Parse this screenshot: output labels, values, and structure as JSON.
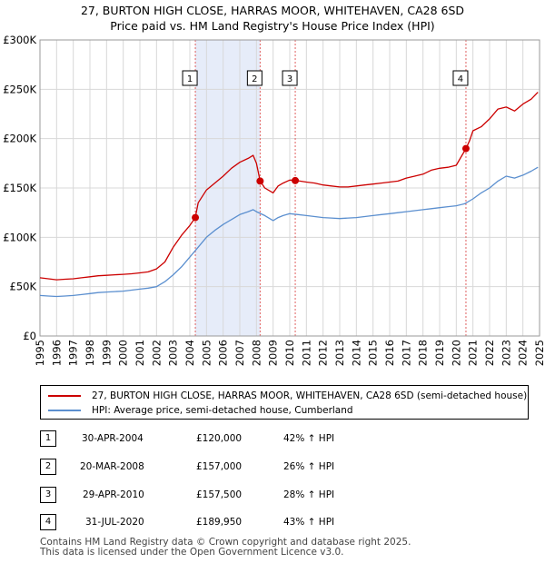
{
  "header": {
    "title": "27, BURTON HIGH CLOSE, HARRAS MOOR, WHITEHAVEN, CA28 6SD",
    "subtitle": "Price paid vs. HM Land Registry's House Price Index (HPI)"
  },
  "chart_data": {
    "type": "line",
    "xlim": [
      1995,
      2025
    ],
    "ylim": [
      0,
      300000
    ],
    "yticks": [
      0,
      50000,
      100000,
      150000,
      200000,
      250000,
      300000
    ],
    "ytick_labels": [
      "£0",
      "£50K",
      "£100K",
      "£150K",
      "£200K",
      "£250K",
      "£300K"
    ],
    "xticks": [
      1995,
      1996,
      1997,
      1998,
      1999,
      2000,
      2001,
      2002,
      2003,
      2004,
      2005,
      2006,
      2007,
      2008,
      2009,
      2010,
      2011,
      2012,
      2013,
      2014,
      2015,
      2016,
      2017,
      2018,
      2019,
      2020,
      2021,
      2022,
      2023,
      2024,
      2025
    ],
    "grid": true,
    "series": [
      {
        "name": "27, BURTON HIGH CLOSE, HARRAS MOOR, WHITEHAVEN, CA28 6SD (semi-detached house)",
        "color": "#cc0000",
        "x": [
          1995.0,
          1995.5,
          1996.0,
          1996.5,
          1997.0,
          1997.5,
          1998.0,
          1998.5,
          1999.0,
          1999.5,
          2000.0,
          2000.5,
          2001.0,
          2001.5,
          2002.0,
          2002.5,
          2003.0,
          2003.5,
          2004.0,
          2004.33,
          2004.5,
          2005.0,
          2005.5,
          2006.0,
          2006.5,
          2007.0,
          2007.5,
          2007.8,
          2008.0,
          2008.22,
          2008.5,
          2009.0,
          2009.3,
          2009.6,
          2010.0,
          2010.33,
          2010.6,
          2011.0,
          2011.5,
          2012.0,
          2012.5,
          2013.0,
          2013.5,
          2014.0,
          2014.5,
          2015.0,
          2015.5,
          2016.0,
          2016.5,
          2017.0,
          2017.5,
          2018.0,
          2018.5,
          2019.0,
          2019.5,
          2020.0,
          2020.58,
          2020.8,
          2021.0,
          2021.5,
          2022.0,
          2022.5,
          2023.0,
          2023.5,
          2024.0,
          2024.5,
          2024.9
        ],
        "values": [
          59000,
          58000,
          57000,
          57500,
          58000,
          59000,
          60000,
          61000,
          61500,
          62000,
          62500,
          63000,
          64000,
          65000,
          68000,
          75000,
          90000,
          102000,
          112000,
          120000,
          135000,
          148000,
          155000,
          162000,
          170000,
          176000,
          180000,
          183000,
          175000,
          157000,
          150000,
          145000,
          152000,
          155000,
          158000,
          157500,
          157000,
          156000,
          155000,
          153000,
          152000,
          151000,
          151000,
          152000,
          153000,
          154000,
          155000,
          156000,
          157000,
          160000,
          162000,
          164000,
          168000,
          170000,
          171000,
          173000,
          189950,
          198000,
          208000,
          212000,
          220000,
          230000,
          232000,
          228000,
          235000,
          240000,
          247000
        ]
      },
      {
        "name": "HPI: Average price, semi-detached house, Cumberland",
        "color": "#5b8fcf",
        "x": [
          1995.0,
          1995.5,
          1996.0,
          1996.5,
          1997.0,
          1997.5,
          1998.0,
          1998.5,
          1999.0,
          1999.5,
          2000.0,
          2000.5,
          2001.0,
          2001.5,
          2002.0,
          2002.5,
          2003.0,
          2003.5,
          2004.0,
          2004.5,
          2005.0,
          2005.5,
          2006.0,
          2006.5,
          2007.0,
          2007.5,
          2007.8,
          2008.0,
          2008.5,
          2009.0,
          2009.3,
          2009.6,
          2010.0,
          2010.5,
          2011.0,
          2011.5,
          2012.0,
          2012.5,
          2013.0,
          2013.5,
          2014.0,
          2014.5,
          2015.0,
          2015.5,
          2016.0,
          2016.5,
          2017.0,
          2017.5,
          2018.0,
          2018.5,
          2019.0,
          2019.5,
          2020.0,
          2020.5,
          2021.0,
          2021.5,
          2022.0,
          2022.5,
          2023.0,
          2023.5,
          2024.0,
          2024.5,
          2024.9
        ],
        "values": [
          41000,
          40500,
          40000,
          40500,
          41000,
          42000,
          43000,
          44000,
          44500,
          45000,
          45500,
          46500,
          47500,
          48500,
          50000,
          55000,
          62000,
          70000,
          80000,
          90000,
          100000,
          107000,
          113000,
          118000,
          123000,
          126000,
          128000,
          126000,
          122000,
          117000,
          120000,
          122000,
          124000,
          123000,
          122000,
          121000,
          120000,
          119500,
          119000,
          119500,
          120000,
          121000,
          122000,
          123000,
          124000,
          125000,
          126000,
          127000,
          128000,
          129000,
          130000,
          131000,
          132000,
          134000,
          139000,
          145000,
          150000,
          157000,
          162000,
          160000,
          163000,
          167000,
          171000
        ]
      }
    ],
    "sales": [
      {
        "label": "1",
        "x": 2004.33,
        "value": 120000
      },
      {
        "label": "2",
        "x": 2008.22,
        "value": 157000
      },
      {
        "label": "3",
        "x": 2010.33,
        "value": 157500
      },
      {
        "label": "4",
        "x": 2020.58,
        "value": 189950
      }
    ],
    "shaded_ranges": [
      [
        2004.33,
        2008.22
      ]
    ]
  },
  "legend": {
    "property_label": "27, BURTON HIGH CLOSE, HARRAS MOOR, WHITEHAVEN, CA28 6SD (semi-detached house)",
    "hpi_label": "HPI: Average price, semi-detached house, Cumberland",
    "property_color": "#cc0000",
    "hpi_color": "#5b8fcf"
  },
  "transactions": [
    {
      "num": "1",
      "date": "30-APR-2004",
      "price": "£120,000",
      "hpi": "42% ↑ HPI"
    },
    {
      "num": "2",
      "date": "20-MAR-2008",
      "price": "£157,000",
      "hpi": "26% ↑ HPI"
    },
    {
      "num": "3",
      "date": "29-APR-2010",
      "price": "£157,500",
      "hpi": "28% ↑ HPI"
    },
    {
      "num": "4",
      "date": "31-JUL-2020",
      "price": "£189,950",
      "hpi": "43% ↑ HPI"
    }
  ],
  "footer": {
    "line1": "Contains HM Land Registry data © Crown copyright and database right 2025.",
    "line2": "This data is licensed under the Open Government Licence v3.0."
  }
}
